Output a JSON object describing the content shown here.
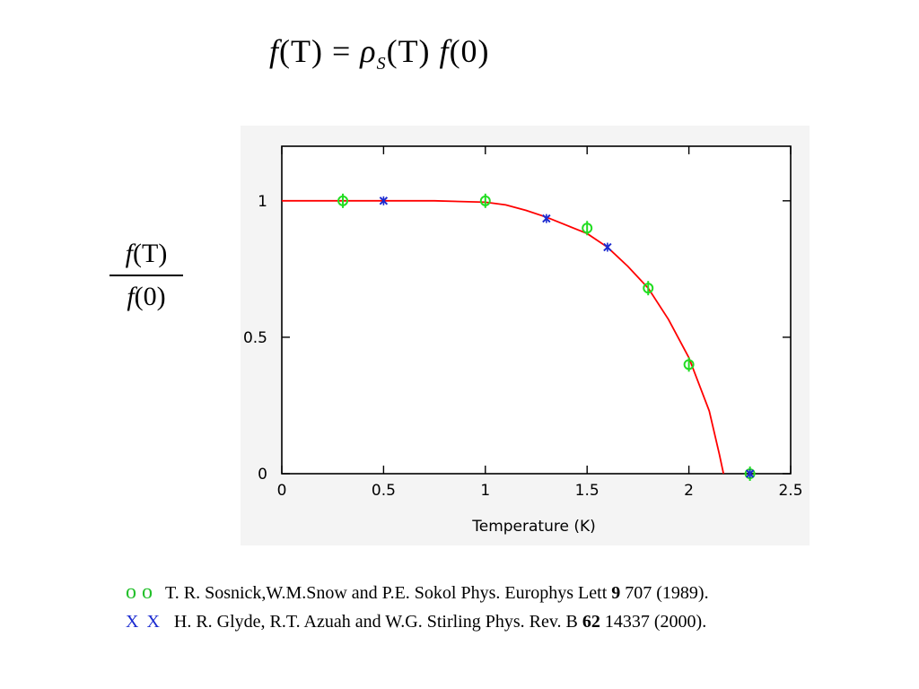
{
  "equation": {
    "lhs_f": "f",
    "lhs_arg": "(T)",
    "equals": "=",
    "rho": "ρ",
    "rho_sub": "S",
    "rho_arg": "(T)",
    "rhs_f": "f",
    "rhs_arg": "(0)"
  },
  "ylabel_fraction": {
    "numerator_f": "f",
    "numerator_arg": "(T)",
    "denominator_f": "f",
    "denominator_arg": "(0)"
  },
  "chart_data": {
    "type": "line",
    "xlabel": "Temperature (K)",
    "ylabel": "",
    "xlim": [
      0,
      2.5
    ],
    "ylim": [
      0,
      1.2
    ],
    "xticks": [
      0,
      0.5,
      1,
      1.5,
      2,
      2.5
    ],
    "xtick_labels": [
      "0",
      "0.5",
      "1",
      "1.5",
      "2",
      "2.5"
    ],
    "yticks": [
      0,
      0.5,
      1
    ],
    "ytick_labels": [
      "0",
      "0.5",
      "1"
    ],
    "grid": false,
    "series": [
      {
        "kind": "line",
        "color": "#ff0000",
        "x": [
          0,
          0.3,
          0.5,
          0.75,
          1.0,
          1.1,
          1.2,
          1.3,
          1.4,
          1.5,
          1.6,
          1.7,
          1.8,
          1.9,
          2.0,
          2.1,
          2.15,
          2.17
        ],
        "y": [
          1.0,
          1.0,
          1.0,
          1.0,
          0.995,
          0.985,
          0.965,
          0.94,
          0.91,
          0.88,
          0.83,
          0.76,
          0.68,
          0.565,
          0.425,
          0.23,
          0.07,
          0.0
        ]
      },
      {
        "kind": "marker",
        "marker": "o",
        "color": "#22dd22",
        "x": [
          0.3,
          1.0,
          1.5,
          1.8,
          2.0,
          2.3
        ],
        "y": [
          1.0,
          1.0,
          0.9,
          0.68,
          0.4,
          0.0
        ]
      },
      {
        "kind": "marker",
        "marker": "x",
        "color": "#1b2bd0",
        "x": [
          0.5,
          1.3,
          1.6,
          2.3
        ],
        "y": [
          1.0,
          0.935,
          0.83,
          0.0
        ]
      }
    ]
  },
  "references": [
    {
      "marker": "o o",
      "text_before": "T. R. Sosnick,W.M.Snow and P.E. Sokol Phys. Europhys Lett ",
      "volume": "9",
      "text_after": " 707 (1989)."
    },
    {
      "marker": "X X",
      "text_before": "H. R. Glyde, R.T. Azuah and W.G. Stirling  Phys. Rev. B  ",
      "volume": "62",
      "text_after": " 14337 (2000)."
    }
  ]
}
